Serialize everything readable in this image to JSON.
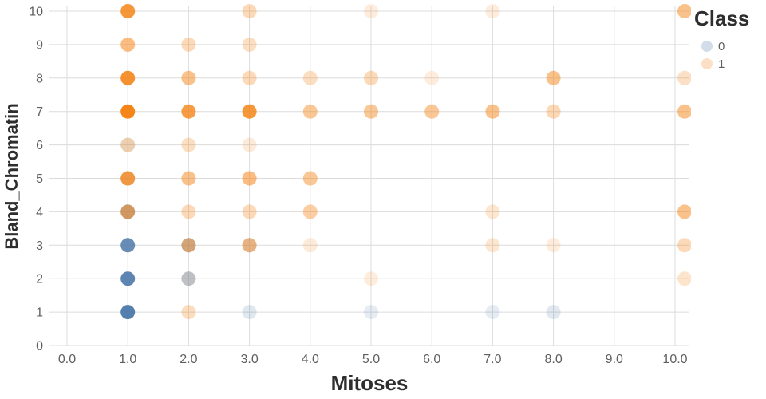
{
  "chart_data": {
    "type": "scatter",
    "title": "",
    "xlabel": "Mitoses",
    "ylabel": "Bland_Chromatin",
    "xlim": [
      0,
      10.25
    ],
    "ylim": [
      0,
      10
    ],
    "grid": true,
    "x_ticks": [
      0,
      1,
      2,
      3,
      4,
      5,
      6,
      7,
      8,
      9,
      10
    ],
    "x_tick_labels": [
      "0.0",
      "1.0",
      "2.0",
      "3.0",
      "4.0",
      "5.0",
      "6.0",
      "7.0",
      "8.0",
      "9.0",
      "10.0"
    ],
    "y_ticks": [
      0,
      1,
      2,
      3,
      4,
      5,
      6,
      7,
      8,
      9,
      10
    ],
    "y_tick_labels": [
      "0",
      "1",
      "2",
      "3",
      "4",
      "5",
      "6",
      "7",
      "8",
      "9",
      "10"
    ],
    "legend": {
      "title": "Class",
      "position": "top-right",
      "entries": [
        {
          "label": "0",
          "color": "#4c78a8"
        },
        {
          "label": "1",
          "color": "#f58518"
        }
      ]
    },
    "class_colors": {
      "0": "#4c78a8",
      "1": "#f58518"
    },
    "colors": {
      "grid": "#dcdcdc",
      "tick_label": "#5f5f5f",
      "axis_title": "#2e2e2e",
      "legend_title": "#2e2e2e",
      "legend_label": "#5f5f5f",
      "background": "#ffffff"
    },
    "points": [
      {
        "x": 1,
        "y": 1,
        "cls": 0,
        "a": 0.95
      },
      {
        "x": 1,
        "y": 2,
        "cls": 0,
        "a": 0.9
      },
      {
        "x": 1,
        "y": 3,
        "cls": 0,
        "a": 0.85
      },
      {
        "x": 1,
        "y": 4,
        "cls": 0,
        "a": 0.55
      },
      {
        "x": 1,
        "y": 5,
        "cls": 0,
        "a": 0.22
      },
      {
        "x": 1,
        "y": 6,
        "cls": 0,
        "a": 0.12
      },
      {
        "x": 2,
        "y": 2,
        "cls": 0,
        "a": 0.4
      },
      {
        "x": 2,
        "y": 3,
        "cls": 0,
        "a": 0.45
      },
      {
        "x": 3,
        "y": 1,
        "cls": 0,
        "a": 0.18
      },
      {
        "x": 3,
        "y": 3,
        "cls": 0,
        "a": 0.22
      },
      {
        "x": 5,
        "y": 1,
        "cls": 0,
        "a": 0.14
      },
      {
        "x": 7,
        "y": 1,
        "cls": 0,
        "a": 0.14
      },
      {
        "x": 8,
        "y": 1,
        "cls": 0,
        "a": 0.17
      },
      {
        "x": 1,
        "y": 4,
        "cls": 1,
        "a": 0.6
      },
      {
        "x": 1,
        "y": 5,
        "cls": 1,
        "a": 0.8
      },
      {
        "x": 1,
        "y": 6,
        "cls": 1,
        "a": 0.3
      },
      {
        "x": 1,
        "y": 7,
        "cls": 1,
        "a": 1
      },
      {
        "x": 1,
        "y": 8,
        "cls": 1,
        "a": 0.9
      },
      {
        "x": 1,
        "y": 9,
        "cls": 1,
        "a": 0.55
      },
      {
        "x": 1,
        "y": 10,
        "cls": 1,
        "a": 0.85
      },
      {
        "x": 2,
        "y": 1,
        "cls": 1,
        "a": 0.28
      },
      {
        "x": 2,
        "y": 2,
        "cls": 1,
        "a": 0.12
      },
      {
        "x": 2,
        "y": 3,
        "cls": 1,
        "a": 0.5
      },
      {
        "x": 2,
        "y": 4,
        "cls": 1,
        "a": 0.3
      },
      {
        "x": 2,
        "y": 5,
        "cls": 1,
        "a": 0.5
      },
      {
        "x": 2,
        "y": 6,
        "cls": 1,
        "a": 0.26
      },
      {
        "x": 2,
        "y": 7,
        "cls": 1,
        "a": 0.8
      },
      {
        "x": 2,
        "y": 8,
        "cls": 1,
        "a": 0.5
      },
      {
        "x": 2,
        "y": 9,
        "cls": 1,
        "a": 0.3
      },
      {
        "x": 3,
        "y": 3,
        "cls": 1,
        "a": 0.5
      },
      {
        "x": 3,
        "y": 4,
        "cls": 1,
        "a": 0.3
      },
      {
        "x": 3,
        "y": 5,
        "cls": 1,
        "a": 0.55
      },
      {
        "x": 3,
        "y": 6,
        "cls": 1,
        "a": 0.16
      },
      {
        "x": 3,
        "y": 7,
        "cls": 1,
        "a": 0.85
      },
      {
        "x": 3,
        "y": 8,
        "cls": 1,
        "a": 0.3
      },
      {
        "x": 3,
        "y": 9,
        "cls": 1,
        "a": 0.26
      },
      {
        "x": 3,
        "y": 10,
        "cls": 1,
        "a": 0.3
      },
      {
        "x": 4,
        "y": 3,
        "cls": 1,
        "a": 0.16
      },
      {
        "x": 4,
        "y": 4,
        "cls": 1,
        "a": 0.4
      },
      {
        "x": 4,
        "y": 5,
        "cls": 1,
        "a": 0.45
      },
      {
        "x": 4,
        "y": 7,
        "cls": 1,
        "a": 0.45
      },
      {
        "x": 4,
        "y": 8,
        "cls": 1,
        "a": 0.26
      },
      {
        "x": 5,
        "y": 2,
        "cls": 1,
        "a": 0.15
      },
      {
        "x": 5,
        "y": 7,
        "cls": 1,
        "a": 0.45
      },
      {
        "x": 5,
        "y": 8,
        "cls": 1,
        "a": 0.3
      },
      {
        "x": 5,
        "y": 10,
        "cls": 1,
        "a": 0.15
      },
      {
        "x": 6,
        "y": 7,
        "cls": 1,
        "a": 0.45
      },
      {
        "x": 6,
        "y": 8,
        "cls": 1,
        "a": 0.15
      },
      {
        "x": 7,
        "y": 3,
        "cls": 1,
        "a": 0.2
      },
      {
        "x": 7,
        "y": 4,
        "cls": 1,
        "a": 0.2
      },
      {
        "x": 7,
        "y": 7,
        "cls": 1,
        "a": 0.5
      },
      {
        "x": 7,
        "y": 10,
        "cls": 1,
        "a": 0.15
      },
      {
        "x": 8,
        "y": 3,
        "cls": 1,
        "a": 0.15
      },
      {
        "x": 8,
        "y": 7,
        "cls": 1,
        "a": 0.32
      },
      {
        "x": 8,
        "y": 8,
        "cls": 1,
        "a": 0.5
      },
      {
        "x": 10,
        "y": 2,
        "cls": 1,
        "a": 0.22
      },
      {
        "x": 10,
        "y": 3,
        "cls": 1,
        "a": 0.3
      },
      {
        "x": 10,
        "y": 4,
        "cls": 1,
        "a": 0.5
      },
      {
        "x": 10,
        "y": 7,
        "cls": 1,
        "a": 0.5
      },
      {
        "x": 10,
        "y": 8,
        "cls": 1,
        "a": 0.25
      },
      {
        "x": 10,
        "y": 10,
        "cls": 1,
        "a": 0.5
      }
    ]
  }
}
